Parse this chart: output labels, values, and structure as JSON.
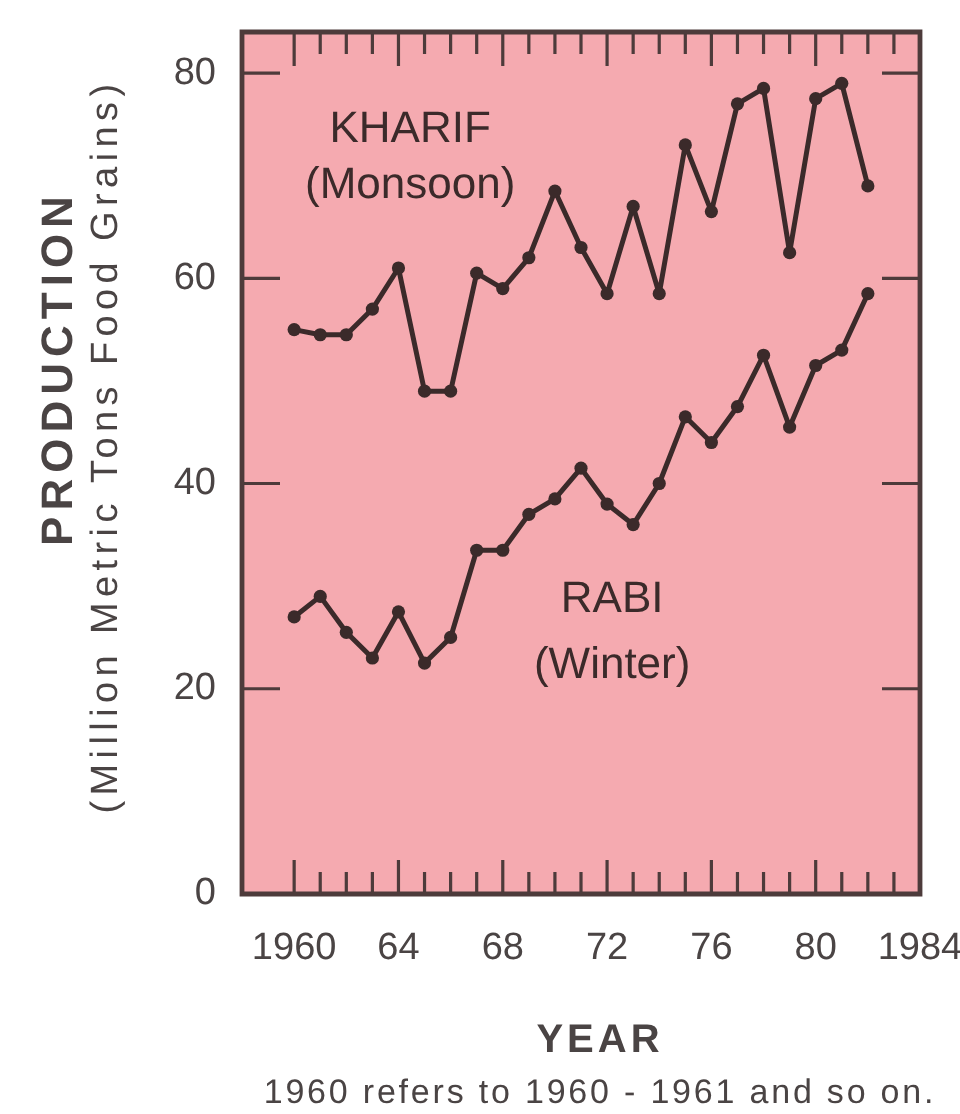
{
  "chart_data": {
    "type": "line",
    "ylabel": "PRODUCTION (Million Metric Tons Food Grains)",
    "xlabel": "YEAR",
    "annotations": [
      "1960 refers to 1960 - 1961 and so on."
    ],
    "x": [
      1960,
      1961,
      1962,
      1963,
      1964,
      1965,
      1966,
      1967,
      1968,
      1969,
      1970,
      1971,
      1972,
      1973,
      1974,
      1975,
      1976,
      1977,
      1978,
      1979,
      1980,
      1981,
      1982
    ],
    "series": [
      {
        "name": "KHARIF (Monsoon)",
        "color": "#3b2a2a",
        "values": [
          55,
          54.5,
          54.5,
          57,
          61,
          49,
          49,
          60.5,
          59,
          62,
          68.5,
          63,
          58.5,
          67,
          58.5,
          73,
          66.5,
          77,
          78.5,
          62.5,
          77.5,
          79,
          69
        ]
      },
      {
        "name": "RABI (Winter)",
        "color": "#3b2a2a",
        "values": [
          27,
          29,
          25.5,
          23,
          27.5,
          22.5,
          25,
          33.5,
          33.5,
          37,
          38.5,
          41.5,
          38,
          36,
          40,
          46.5,
          44,
          47.5,
          52.5,
          45.5,
          51.5,
          53,
          58.5
        ]
      }
    ],
    "xlim": [
      1958,
      1984
    ],
    "xticks": [
      1960,
      {
        "value": 1961,
        "label": null
      },
      {
        "value": 1962,
        "label": null
      },
      {
        "value": 1963,
        "label": null
      },
      {
        "value": 1964,
        "label": "64"
      },
      {
        "value": 1965,
        "label": null
      },
      {
        "value": 1966,
        "label": null
      },
      {
        "value": 1967,
        "label": null
      },
      {
        "value": 1968,
        "label": "68"
      },
      {
        "value": 1969,
        "label": null
      },
      {
        "value": 1970,
        "label": null
      },
      {
        "value": 1971,
        "label": null
      },
      {
        "value": 1972,
        "label": "72"
      },
      {
        "value": 1973,
        "label": null
      },
      {
        "value": 1974,
        "label": null
      },
      {
        "value": 1975,
        "label": null
      },
      {
        "value": 1976,
        "label": "76"
      },
      {
        "value": 1977,
        "label": null
      },
      {
        "value": 1978,
        "label": null
      },
      {
        "value": 1979,
        "label": null
      },
      {
        "value": 1980,
        "label": "80"
      },
      {
        "value": 1981,
        "label": null
      },
      {
        "value": 1982,
        "label": null
      },
      {
        "value": 1983,
        "label": null
      },
      1984
    ],
    "ylim": [
      0,
      84
    ],
    "yticks": [
      0,
      20,
      40,
      60,
      80
    ],
    "marker": "circle",
    "legend": false
  }
}
